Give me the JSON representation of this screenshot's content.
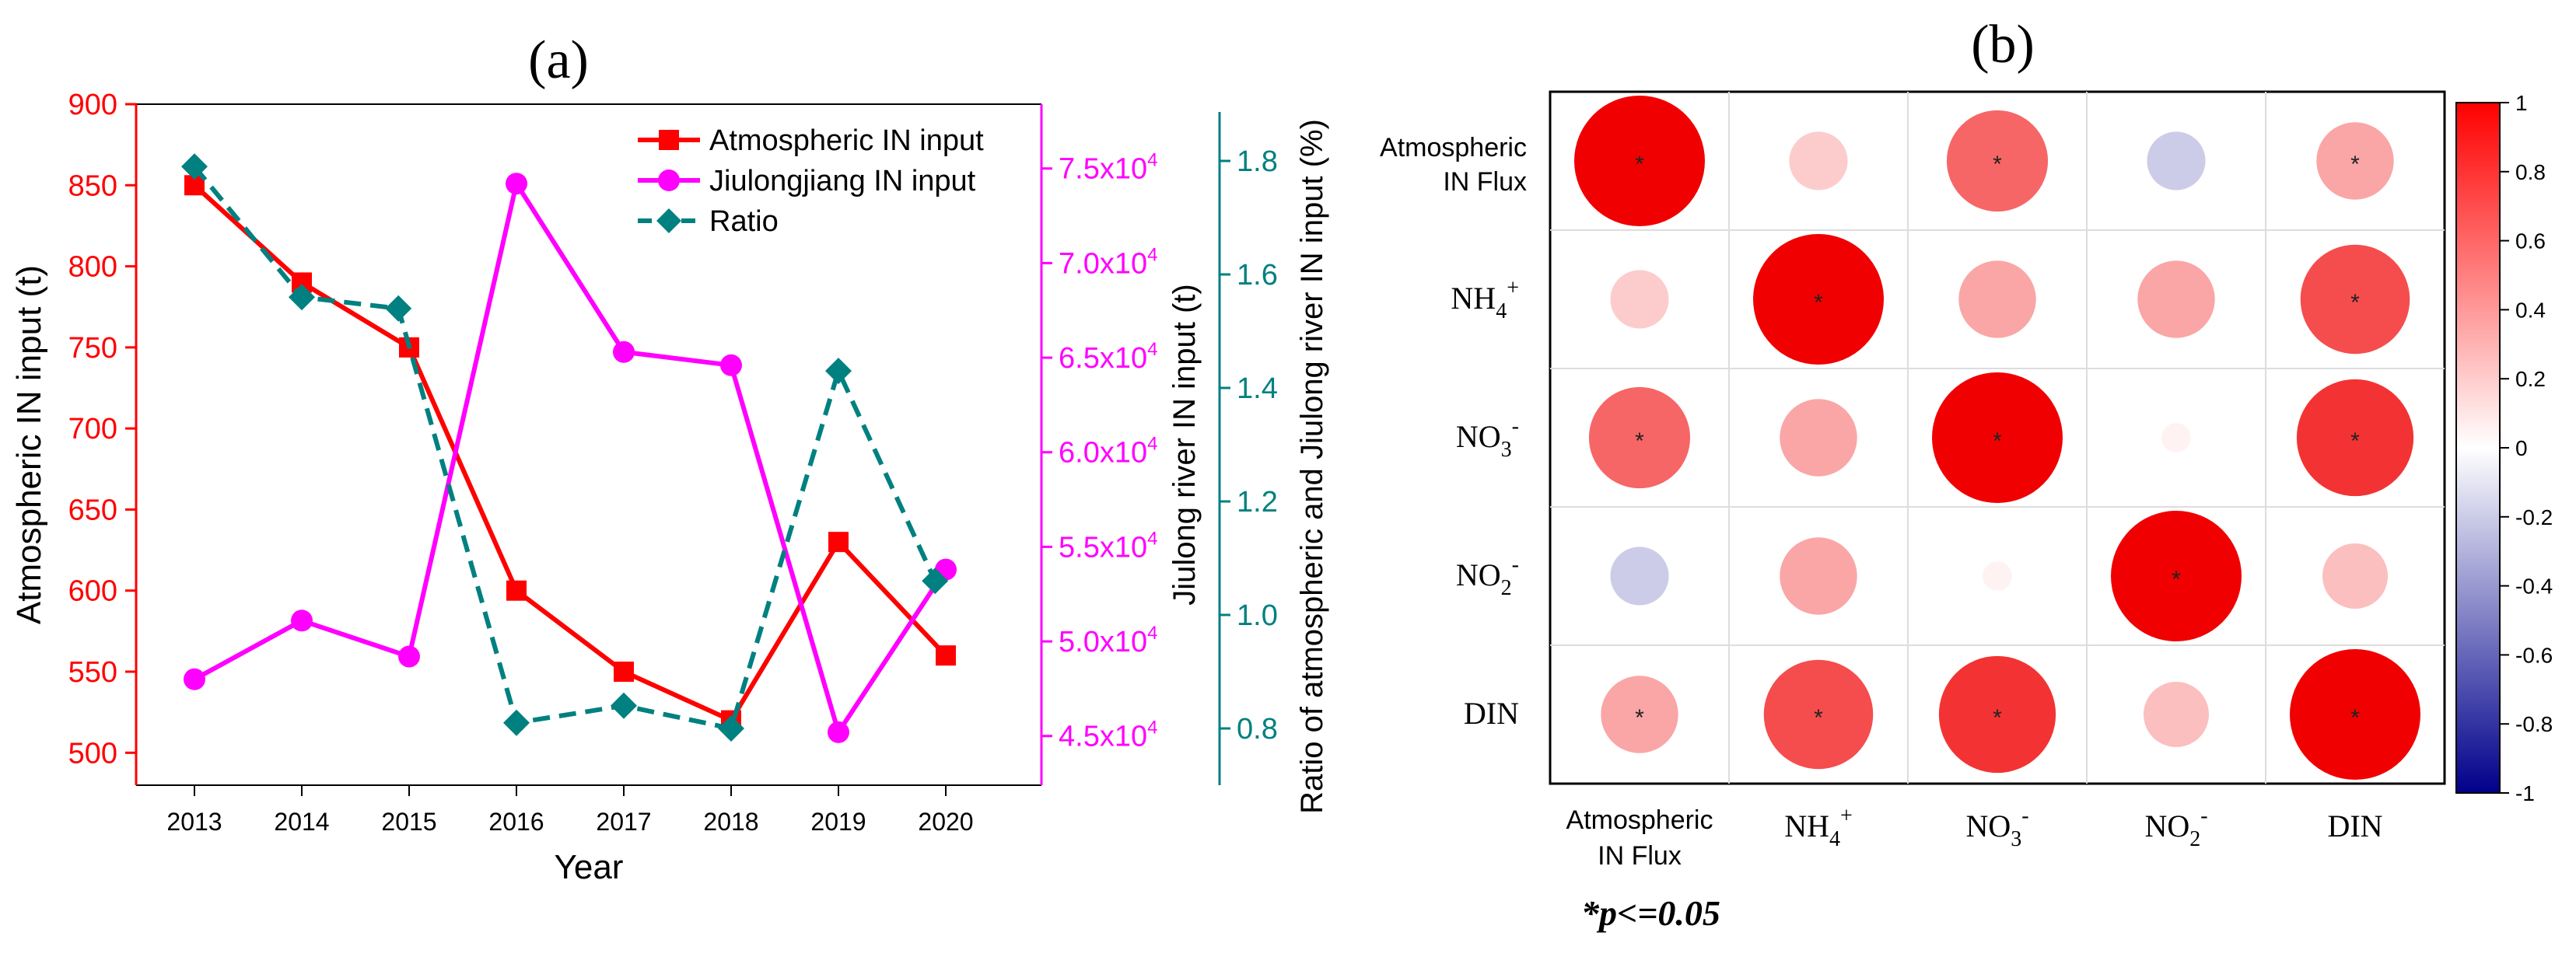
{
  "chart_data": [
    {
      "panel": "(a)",
      "type": "line",
      "categories": [
        "2013",
        "2014",
        "2015",
        "2016",
        "2017",
        "2018",
        "2019",
        "2020"
      ],
      "xlabel": "Year",
      "axes": {
        "left": {
          "label": "Atmospheric IN input (t)",
          "ticks": [
            "500",
            "550",
            "600",
            "650",
            "700",
            "750",
            "800",
            "850",
            "900"
          ],
          "tick_values": [
            500,
            550,
            600,
            650,
            700,
            750,
            800,
            850,
            900
          ],
          "ylim": [
            480,
            900
          ],
          "color": "#ff0000"
        },
        "right1": {
          "label": "Jiulong river IN input (t)",
          "ticks": [
            "4.5x10",
            "5.0x10",
            "5.5x10",
            "6.0x10",
            "6.5x10",
            "7.0x10",
            "7.5x10"
          ],
          "tick_exponent": "4",
          "tick_values": [
            45000,
            50000,
            55000,
            60000,
            65000,
            70000,
            75000
          ],
          "ylim": [
            42400,
            78400
          ],
          "color": "#ff00ff"
        },
        "right2": {
          "label": "Ratio of atmospheric and Jiulong river IN input (%)",
          "ticks": [
            "0.8",
            "1.0",
            "1.2",
            "1.4",
            "1.6",
            "1.8"
          ],
          "tick_values": [
            0.8,
            1.0,
            1.2,
            1.4,
            1.6,
            1.8
          ],
          "ylim": [
            0.7,
            1.9
          ],
          "color": "#008080"
        }
      },
      "series": [
        {
          "name": "Atmospheric IN input",
          "axis": "left",
          "color": "#ff0000",
          "marker": "square",
          "dash": "solid",
          "x": [
            0,
            1,
            2,
            3,
            4,
            5,
            6,
            7
          ],
          "values": [
            850,
            790,
            750,
            600,
            550,
            520,
            630,
            560
          ]
        },
        {
          "name": "Jiulongjiang IN input",
          "axis": "right1",
          "color": "#ff00ff",
          "marker": "circle",
          "dash": "solid",
          "x": [
            0,
            1,
            2,
            3,
            4,
            5,
            6,
            7
          ],
          "values": [
            48000,
            51100,
            49200,
            74200,
            65300,
            64600,
            45200,
            53800
          ]
        },
        {
          "name": "Ratio",
          "axis": "right2",
          "color": "#008080",
          "marker": "diamond",
          "dash": "dashed",
          "x": [
            0,
            1,
            1.9,
            3,
            4,
            5,
            6,
            6.9
          ],
          "values": [
            1.79,
            1.56,
            1.54,
            0.81,
            0.84,
            0.8,
            1.43,
            1.06
          ]
        }
      ],
      "legend": "top-right"
    },
    {
      "panel": "(b)",
      "type": "heatmap",
      "style": "circle-correlation",
      "rows": [
        {
          "l1": "Atmospheric",
          "l2": "IN Flux"
        },
        {
          "base": "NH",
          "sub": "4",
          "sup": "+"
        },
        {
          "base": "NO",
          "sub": "3",
          "sup": "-"
        },
        {
          "base": "NO",
          "sub": "2",
          "sup": "-"
        },
        {
          "base": "DIN",
          "sub": "",
          "sup": ""
        }
      ],
      "columns": [
        {
          "l1": "Atmospheric",
          "l2": "IN Flux"
        },
        {
          "base": "NH",
          "sub": "4",
          "sup": "+"
        },
        {
          "base": "NO",
          "sub": "3",
          "sup": "-"
        },
        {
          "base": "NO",
          "sub": "2",
          "sup": "-"
        },
        {
          "base": "DIN",
          "sub": "",
          "sup": ""
        }
      ],
      "matrix": [
        [
          1.0,
          0.2,
          0.6,
          -0.2,
          0.35
        ],
        [
          0.2,
          1.0,
          0.35,
          0.35,
          0.7
        ],
        [
          0.6,
          0.35,
          1.0,
          0.05,
          0.8
        ],
        [
          -0.2,
          0.35,
          0.05,
          1.0,
          0.25
        ],
        [
          0.35,
          0.7,
          0.8,
          0.25,
          1.0
        ]
      ],
      "significant": [
        [
          true,
          false,
          true,
          false,
          true
        ],
        [
          false,
          true,
          false,
          false,
          true
        ],
        [
          true,
          false,
          true,
          false,
          true
        ],
        [
          false,
          false,
          false,
          true,
          false
        ],
        [
          true,
          true,
          true,
          false,
          true
        ]
      ],
      "star": "*",
      "colorbar": {
        "ticks": [
          "1",
          "0.8",
          "0.6",
          "0.4",
          "0.2",
          "0",
          "-0.2",
          "-0.4",
          "-0.6",
          "-0.8",
          "-1"
        ],
        "tick_values": [
          1,
          0.8,
          0.6,
          0.4,
          0.2,
          0,
          -0.2,
          -0.4,
          -0.6,
          -0.8,
          -1
        ],
        "range": [
          -1,
          1
        ],
        "colors": {
          "negative": "#00008b",
          "zero": "#ffffff",
          "positive": "#ff0000"
        }
      },
      "note": "*p<=0.05"
    }
  ]
}
